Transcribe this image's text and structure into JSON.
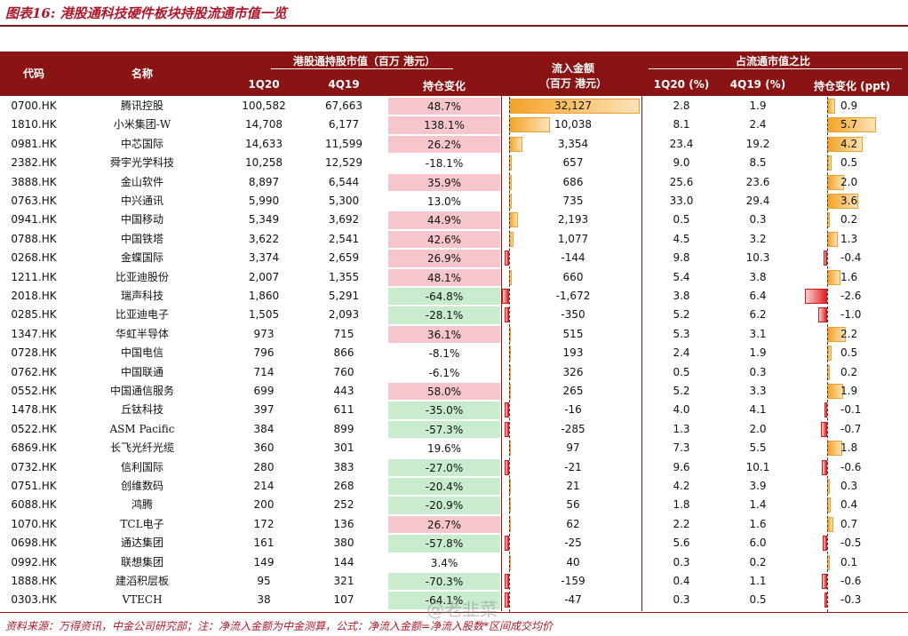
{
  "title": "图表16: 港股通科技硬件板块持股流通市值一览",
  "headers": {
    "code": "代码",
    "name": "名称",
    "mktcap_group": "港股通持股市值（百万 港元）",
    "q1": "1Q20",
    "q4": "4Q19",
    "chg": "持仓变化",
    "flow_l1": "流入金额",
    "flow_l2": "（百万 港元）",
    "ratio_group": "占流通市值之比",
    "r_q1": "1Q20 (%)",
    "r_q4": "4Q19 (%)",
    "r_chg": "持仓变化 (ppt)"
  },
  "rows": [
    {
      "code": "0700.HK",
      "name": "腾讯控股",
      "q1": "100,582",
      "q4": "67,663",
      "chg": "48.7%",
      "chg_sign": "pos",
      "flow": "32,127",
      "flow_val": 32127,
      "r1": "2.8",
      "r4": "1.9",
      "rc": "0.9",
      "rc_val": 0.9
    },
    {
      "code": "1810.HK",
      "name": "小米集团-W",
      "q1": "14,708",
      "q4": "6,177",
      "chg": "138.1%",
      "chg_sign": "pos",
      "flow": "10,038",
      "flow_val": 10038,
      "r1": "8.1",
      "r4": "2.4",
      "rc": "5.7",
      "rc_val": 5.7
    },
    {
      "code": "0981.HK",
      "name": "中芯国际",
      "q1": "14,633",
      "q4": "11,599",
      "chg": "26.2%",
      "chg_sign": "pos",
      "flow": "3,354",
      "flow_val": 3354,
      "r1": "23.4",
      "r4": "19.2",
      "rc": "4.2",
      "rc_val": 4.2
    },
    {
      "code": "2382.HK",
      "name": "舜宇光学科技",
      "q1": "10,258",
      "q4": "12,529",
      "chg": "-18.1%",
      "chg_sign": "none",
      "flow": "657",
      "flow_val": 657,
      "r1": "9.0",
      "r4": "8.5",
      "rc": "0.5",
      "rc_val": 0.5
    },
    {
      "code": "3888.HK",
      "name": "金山软件",
      "q1": "8,897",
      "q4": "6,544",
      "chg": "35.9%",
      "chg_sign": "pos",
      "flow": "686",
      "flow_val": 686,
      "r1": "25.6",
      "r4": "23.6",
      "rc": "2.0",
      "rc_val": 2.0
    },
    {
      "code": "0763.HK",
      "name": "中兴通讯",
      "q1": "5,990",
      "q4": "5,300",
      "chg": "13.0%",
      "chg_sign": "none",
      "flow": "735",
      "flow_val": 735,
      "r1": "33.0",
      "r4": "29.4",
      "rc": "3.6",
      "rc_val": 3.6
    },
    {
      "code": "0941.HK",
      "name": "中国移动",
      "q1": "5,349",
      "q4": "3,692",
      "chg": "44.9%",
      "chg_sign": "pos",
      "flow": "2,193",
      "flow_val": 2193,
      "r1": "0.5",
      "r4": "0.3",
      "rc": "0.2",
      "rc_val": 0.2
    },
    {
      "code": "0788.HK",
      "name": "中国铁塔",
      "q1": "3,622",
      "q4": "2,541",
      "chg": "42.6%",
      "chg_sign": "pos",
      "flow": "1,077",
      "flow_val": 1077,
      "r1": "4.5",
      "r4": "3.2",
      "rc": "1.3",
      "rc_val": 1.3
    },
    {
      "code": "0268.HK",
      "name": "金蝶国际",
      "q1": "3,374",
      "q4": "2,659",
      "chg": "26.9%",
      "chg_sign": "pos",
      "flow": "-144",
      "flow_val": -144,
      "r1": "9.8",
      "r4": "10.3",
      "rc": "-0.4",
      "rc_val": -0.4
    },
    {
      "code": "1211.HK",
      "name": "比亚迪股份",
      "q1": "2,007",
      "q4": "1,355",
      "chg": "48.1%",
      "chg_sign": "pos",
      "flow": "660",
      "flow_val": 660,
      "r1": "5.4",
      "r4": "3.8",
      "rc": "1.6",
      "rc_val": 1.6
    },
    {
      "code": "2018.HK",
      "name": "瑞声科技",
      "q1": "1,860",
      "q4": "5,291",
      "chg": "-64.8%",
      "chg_sign": "neg",
      "flow": "-1,672",
      "flow_val": -1672,
      "r1": "3.8",
      "r4": "6.4",
      "rc": "-2.6",
      "rc_val": -2.6
    },
    {
      "code": "0285.HK",
      "name": "比亚迪电子",
      "q1": "1,505",
      "q4": "2,093",
      "chg": "-28.1%",
      "chg_sign": "neg",
      "flow": "-350",
      "flow_val": -350,
      "r1": "5.2",
      "r4": "6.2",
      "rc": "-1.0",
      "rc_val": -1.0
    },
    {
      "code": "1347.HK",
      "name": "华虹半导体",
      "q1": "973",
      "q4": "715",
      "chg": "36.1%",
      "chg_sign": "pos",
      "flow": "515",
      "flow_val": 515,
      "r1": "5.3",
      "r4": "3.1",
      "rc": "2.2",
      "rc_val": 2.2
    },
    {
      "code": "0728.HK",
      "name": "中国电信",
      "q1": "796",
      "q4": "866",
      "chg": "-8.1%",
      "chg_sign": "none",
      "flow": "193",
      "flow_val": 193,
      "r1": "2.4",
      "r4": "1.9",
      "rc": "0.5",
      "rc_val": 0.5
    },
    {
      "code": "0762.HK",
      "name": "中国联通",
      "q1": "714",
      "q4": "760",
      "chg": "-6.1%",
      "chg_sign": "none",
      "flow": "326",
      "flow_val": 326,
      "r1": "0.5",
      "r4": "0.3",
      "rc": "0.2",
      "rc_val": 0.2
    },
    {
      "code": "0552.HK",
      "name": "中国通信服务",
      "q1": "699",
      "q4": "443",
      "chg": "58.0%",
      "chg_sign": "pos",
      "flow": "265",
      "flow_val": 265,
      "r1": "5.2",
      "r4": "3.3",
      "rc": "1.9",
      "rc_val": 1.9
    },
    {
      "code": "1478.HK",
      "name": "丘钛科技",
      "q1": "397",
      "q4": "611",
      "chg": "-35.0%",
      "chg_sign": "neg",
      "flow": "-16",
      "flow_val": -16,
      "r1": "4.0",
      "r4": "4.1",
      "rc": "-0.1",
      "rc_val": -0.1
    },
    {
      "code": "0522.HK",
      "name": "ASM Pacific",
      "q1": "384",
      "q4": "899",
      "chg": "-57.3%",
      "chg_sign": "neg",
      "flow": "-285",
      "flow_val": -285,
      "r1": "1.3",
      "r4": "2.0",
      "rc": "-0.7",
      "rc_val": -0.7
    },
    {
      "code": "6869.HK",
      "name": "长飞光纤光缆",
      "q1": "360",
      "q4": "301",
      "chg": "19.6%",
      "chg_sign": "none",
      "flow": "97",
      "flow_val": 97,
      "r1": "7.3",
      "r4": "5.5",
      "rc": "1.8",
      "rc_val": 1.8
    },
    {
      "code": "0732.HK",
      "name": "信利国际",
      "q1": "280",
      "q4": "383",
      "chg": "-27.0%",
      "chg_sign": "neg",
      "flow": "-21",
      "flow_val": -21,
      "r1": "9.6",
      "r4": "10.1",
      "rc": "-0.6",
      "rc_val": -0.6
    },
    {
      "code": "0751.HK",
      "name": "创维数码",
      "q1": "214",
      "q4": "268",
      "chg": "-20.4%",
      "chg_sign": "neg",
      "flow": "21",
      "flow_val": 21,
      "r1": "4.2",
      "r4": "3.9",
      "rc": "0.3",
      "rc_val": 0.3
    },
    {
      "code": "6088.HK",
      "name": "鸿腾",
      "q1": "200",
      "q4": "252",
      "chg": "-20.9%",
      "chg_sign": "neg",
      "flow": "56",
      "flow_val": 56,
      "r1": "1.8",
      "r4": "1.4",
      "rc": "0.4",
      "rc_val": 0.4
    },
    {
      "code": "1070.HK",
      "name": "TCL电子",
      "q1": "172",
      "q4": "136",
      "chg": "26.7%",
      "chg_sign": "pos",
      "flow": "62",
      "flow_val": 62,
      "r1": "2.2",
      "r4": "1.6",
      "rc": "0.7",
      "rc_val": 0.7
    },
    {
      "code": "0698.HK",
      "name": "通达集团",
      "q1": "161",
      "q4": "380",
      "chg": "-57.8%",
      "chg_sign": "neg",
      "flow": "-25",
      "flow_val": -25,
      "r1": "5.6",
      "r4": "6.0",
      "rc": "-0.5",
      "rc_val": -0.5
    },
    {
      "code": "0992.HK",
      "name": "联想集团",
      "q1": "149",
      "q4": "144",
      "chg": "3.4%",
      "chg_sign": "none",
      "flow": "40",
      "flow_val": 40,
      "r1": "0.3",
      "r4": "0.2",
      "rc": "0.1",
      "rc_val": 0.1
    },
    {
      "code": "1888.HK",
      "name": "建滔积层板",
      "q1": "95",
      "q4": "321",
      "chg": "-70.3%",
      "chg_sign": "neg",
      "flow": "-159",
      "flow_val": -159,
      "r1": "0.4",
      "r4": "1.1",
      "rc": "-0.6",
      "rc_val": -0.6
    },
    {
      "code": "0303.HK",
      "name": "VTECH",
      "q1": "38",
      "q4": "107",
      "chg": "-64.1%",
      "chg_sign": "neg",
      "flow": "-47",
      "flow_val": -47,
      "r1": "0.3",
      "r4": "0.5",
      "rc": "-0.3",
      "rc_val": -0.3
    }
  ],
  "footer": "资料来源：万得资讯，中金公司研究部；注：净流入金额为中金测算，公式：净流入金额=净流入股数*区间成交均价",
  "watermark": "@老韭菜"
}
